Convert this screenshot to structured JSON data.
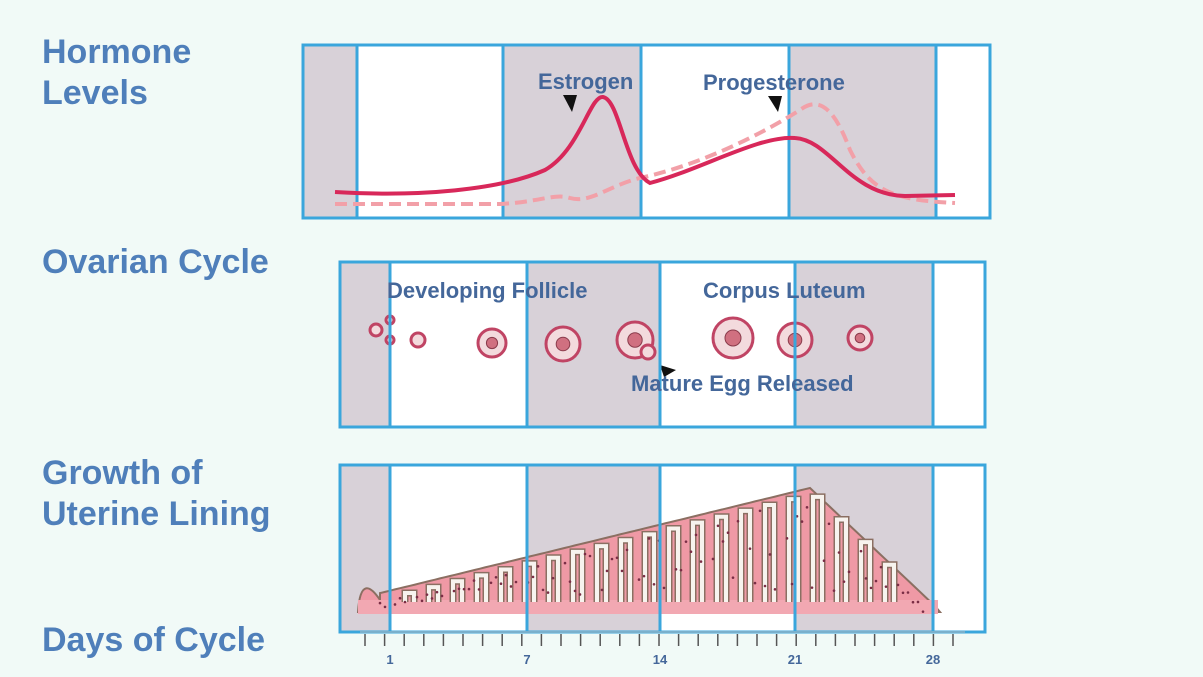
{
  "labels": {
    "hormone_levels": "Hormone Levels",
    "ovarian_cycle": "Ovarian Cycle",
    "uterine_lining": "Growth of Uterine Lining",
    "days_of_cycle": "Days of Cycle"
  },
  "hormones": {
    "estrogen": "Estrogen",
    "progesterone": "Progesterone"
  },
  "ovary": {
    "developing_follicle": "Developing Follicle",
    "corpus_luteum": "Corpus Luteum",
    "mature_egg_released": "Mature Egg Released"
  },
  "days": [
    1,
    7,
    14,
    21,
    28
  ]
}
